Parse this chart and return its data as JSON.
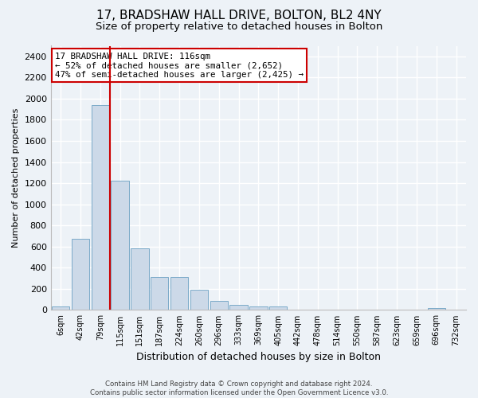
{
  "title1": "17, BRADSHAW HALL DRIVE, BOLTON, BL2 4NY",
  "title2": "Size of property relative to detached houses in Bolton",
  "xlabel": "Distribution of detached houses by size in Bolton",
  "ylabel": "Number of detached properties",
  "bar_labels": [
    "6sqm",
    "42sqm",
    "79sqm",
    "115sqm",
    "151sqm",
    "187sqm",
    "224sqm",
    "260sqm",
    "296sqm",
    "333sqm",
    "369sqm",
    "405sqm",
    "442sqm",
    "478sqm",
    "514sqm",
    "550sqm",
    "587sqm",
    "623sqm",
    "659sqm",
    "696sqm",
    "732sqm"
  ],
  "bar_values": [
    30,
    670,
    1940,
    1220,
    580,
    310,
    310,
    190,
    85,
    45,
    30,
    30,
    0,
    0,
    0,
    0,
    0,
    0,
    0,
    20,
    0
  ],
  "bar_color": "#ccd9e8",
  "bar_edge_color": "#7aaac8",
  "vline_color": "#cc0000",
  "property_sqm": 116,
  "annotation_text1": "17 BRADSHAW HALL DRIVE: 116sqm",
  "annotation_text2": "← 52% of detached houses are smaller (2,652)",
  "annotation_text3": "47% of semi-detached houses are larger (2,425) →",
  "annotation_box_facecolor": "#ffffff",
  "annotation_box_edgecolor": "#cc0000",
  "ylim": [
    0,
    2500
  ],
  "yticks": [
    0,
    200,
    400,
    600,
    800,
    1000,
    1200,
    1400,
    1600,
    1800,
    2000,
    2200,
    2400
  ],
  "background_color": "#edf2f7",
  "plot_background": "#edf2f7",
  "grid_color": "#ffffff",
  "title1_fontsize": 11,
  "title2_fontsize": 9.5,
  "footer1": "Contains HM Land Registry data © Crown copyright and database right 2024.",
  "footer2": "Contains public sector information licensed under the Open Government Licence v3.0."
}
